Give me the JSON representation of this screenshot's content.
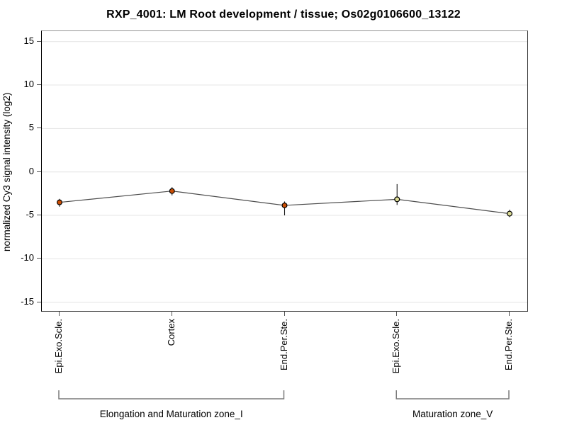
{
  "chart_data": {
    "type": "line",
    "title": "RXP_4001: LM Root development / tissue; Os02g0106600_13122",
    "ylabel": "normalized Cy3 signal intensity (log2)",
    "xlabel": "",
    "ylim": [
      -16.0,
      16.2
    ],
    "yticks": [
      15,
      10,
      5,
      0,
      -5,
      -10,
      -15
    ],
    "grid": "horizontal",
    "legend": "none",
    "categories": [
      "Epi.Exo.Scle.",
      "Cortex",
      "End.Per.Ste.",
      "Epi.Exo.Scle.",
      "End.Per.Ste."
    ],
    "series": [
      {
        "name": "normalized Cy3 signal intensity (log2)",
        "values": [
          -3.5,
          -2.2,
          -3.85,
          -3.15,
          -4.8
        ],
        "error_low": [
          -4.0,
          -2.7,
          -5.0,
          -3.8,
          -5.2
        ],
        "error_high": [
          -3.1,
          -1.75,
          -3.4,
          -1.4,
          -4.35
        ],
        "point_colors": [
          "#cc4e04",
          "#cc4e04",
          "#cc4e04",
          "#dcdc96",
          "#dcdc96"
        ]
      }
    ],
    "line_color": "#4d4d4d",
    "point_outline": "#000000",
    "grid_color": "#e4e4e4",
    "error_bar_color": "#1a1a1a",
    "bracket_color": "#7a7a7a",
    "groups": [
      {
        "label": "Elongation and Maturation zone_I",
        "start": 0,
        "end": 2
      },
      {
        "label": "Maturation zone_V",
        "start": 3,
        "end": 4
      }
    ]
  }
}
